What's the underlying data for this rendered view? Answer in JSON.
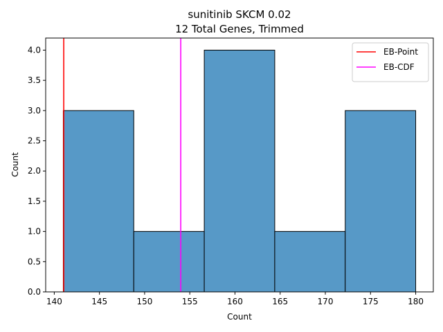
{
  "chart_data": {
    "type": "bar",
    "title": "sunitinib SKCM 0.02",
    "subtitle": "12 Total Genes, Trimmed",
    "xlabel": "Count",
    "ylabel": "Count",
    "xlim": [
      139.05,
      181.95
    ],
    "ylim": [
      0,
      4.2
    ],
    "x_ticks": [
      140,
      145,
      150,
      155,
      160,
      165,
      170,
      175,
      180
    ],
    "y_ticks": [
      0.0,
      0.5,
      1.0,
      1.5,
      2.0,
      2.5,
      3.0,
      3.5,
      4.0
    ],
    "bin_edges": [
      141.0,
      148.8,
      156.6,
      164.4,
      172.2,
      180.0
    ],
    "values": [
      3,
      1,
      4,
      1,
      3
    ],
    "bar_color": "#5799c7",
    "vlines": [
      {
        "name": "EB-Point",
        "x": 141.05,
        "color": "#ff0000"
      },
      {
        "name": "EB-CDF",
        "x": 154.0,
        "color": "#ff00ff"
      }
    ],
    "legend_position": "upper right",
    "grid": false
  }
}
